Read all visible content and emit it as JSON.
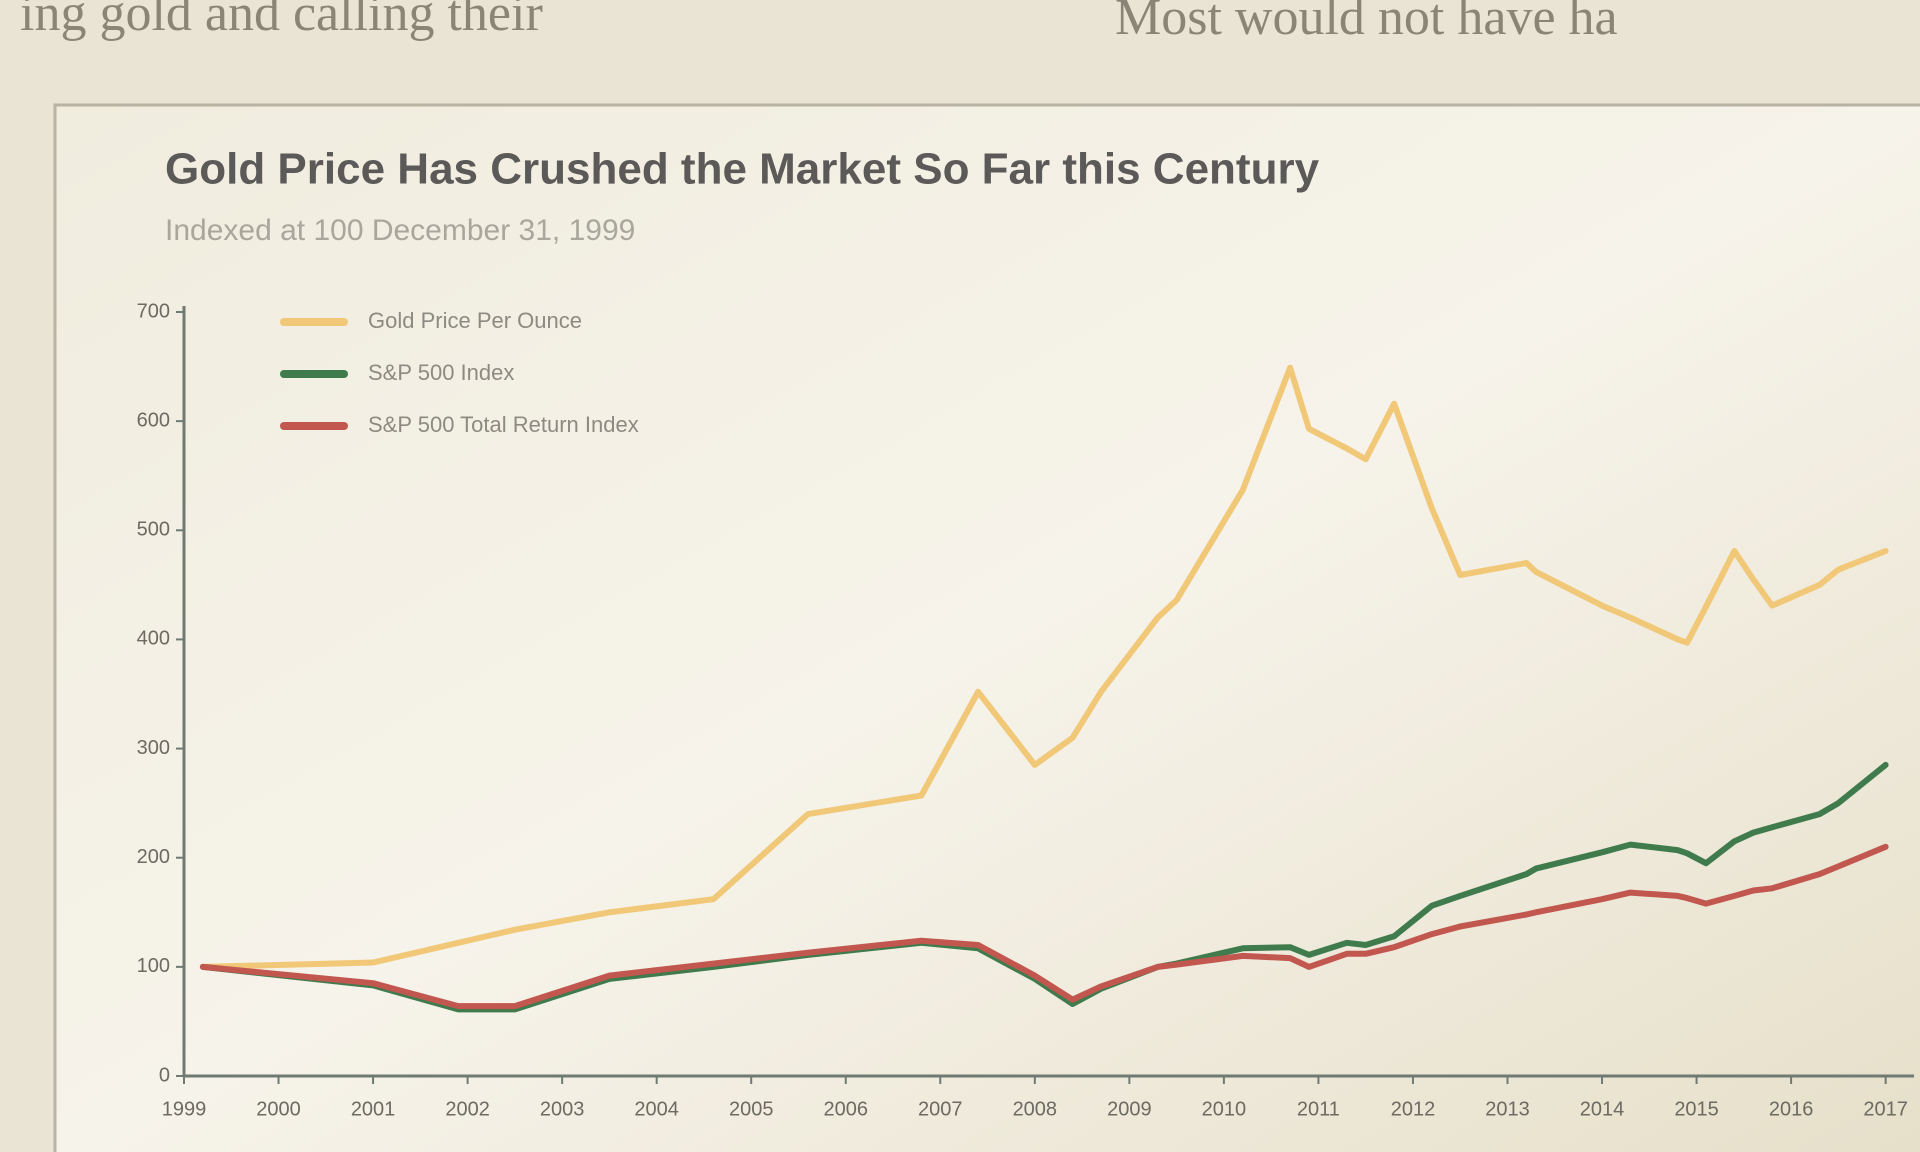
{
  "page_text": [
    "ing gold and calling their",
    "Most would not have ha"
  ],
  "chart_data": {
    "type": "line",
    "title": "Gold Price Has Crushed the Market So Far this Century",
    "subtitle": "Indexed at 100 December 31, 1999",
    "x": [
      1999.2,
      2001.0,
      2001.9,
      2002.5,
      2003.5,
      2004.6,
      2005.6,
      2006.8,
      2007.4,
      2008.0,
      2008.4,
      2008.7,
      2009.3,
      2009.5,
      2010.2,
      2010.7,
      2010.9,
      2011.3,
      2011.5,
      2011.8,
      2012.2,
      2012.5,
      2013.2,
      2013.3,
      2014.0,
      2014.3,
      2014.8,
      2014.9,
      2015.1,
      2015.4,
      2015.6,
      2015.8,
      2016.3,
      2016.5,
      2017.0
    ],
    "series": [
      {
        "name": "Gold Price Per Ounce",
        "color": "#f1c878",
        "values": [
          100,
          104,
          122,
          134,
          150,
          162,
          240,
          257,
          352,
          285,
          310,
          352,
          420,
          436,
          537,
          649,
          593,
          575,
          565,
          616,
          520,
          459,
          470,
          462,
          431,
          420,
          400,
          397,
          430,
          481,
          455,
          431,
          450,
          464,
          481
        ]
      },
      {
        "name": "S&P 500 Index",
        "color": "#3f7b4c",
        "values": [
          100,
          83,
          61,
          61,
          89,
          100,
          111,
          122,
          117,
          89,
          66,
          80,
          100,
          103,
          117,
          118,
          111,
          122,
          120,
          128,
          156,
          165,
          185,
          190,
          205,
          212,
          207,
          204,
          195,
          215,
          223,
          228,
          240,
          250,
          285
        ]
      },
      {
        "name": "S&P 500 Total Return Index",
        "color": "#c2574f",
        "values": [
          100,
          85,
          64,
          64,
          92,
          103,
          113,
          124,
          120,
          92,
          70,
          82,
          100,
          102,
          110,
          108,
          100,
          112,
          112,
          118,
          130,
          137,
          148,
          150,
          162,
          168,
          165,
          163,
          158,
          165,
          170,
          172,
          185,
          192,
          210
        ]
      }
    ],
    "xlim": [
      1999,
      2017.3
    ],
    "xticks": [
      1999,
      2000,
      2001,
      2002,
      2003,
      2004,
      2005,
      2006,
      2007,
      2008,
      2009,
      2010,
      2011,
      2012,
      2013,
      2014,
      2015,
      2016,
      2017
    ],
    "ylim": [
      0,
      700
    ],
    "yticks": [
      0,
      100,
      200,
      300,
      400,
      500,
      600,
      700
    ],
    "grid": false,
    "legend": "top-left"
  }
}
